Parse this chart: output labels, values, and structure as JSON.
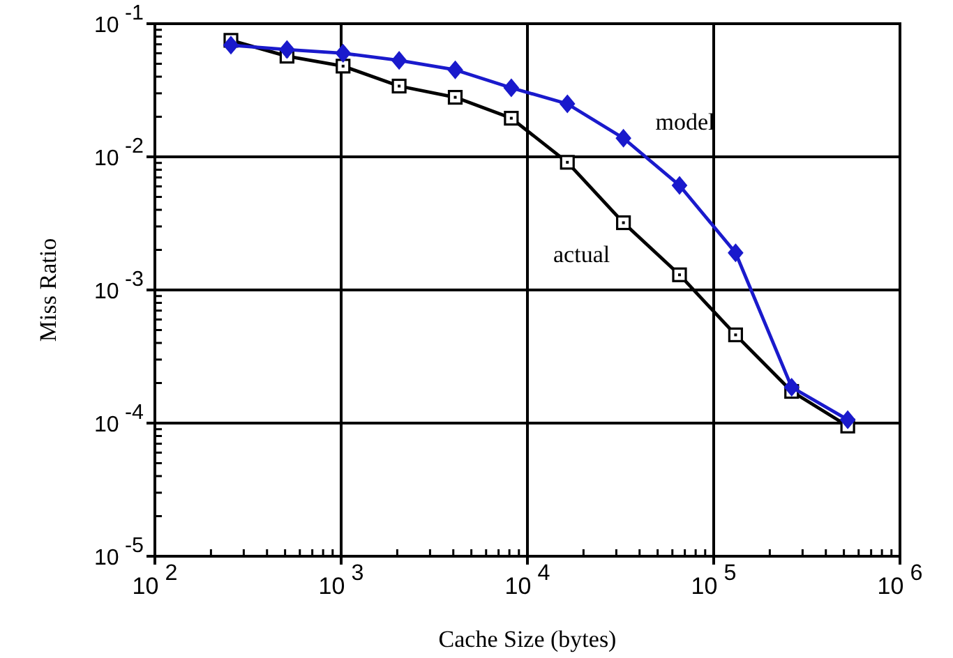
{
  "chart_data": {
    "type": "line",
    "xlabel": "Cache Size (bytes)",
    "ylabel": "Miss Ratio",
    "log": "xy",
    "grid": true,
    "line_style": "solid",
    "x": [
      256,
      512,
      1024,
      2048,
      4096,
      8192,
      16384,
      32768,
      65536,
      131072,
      262144,
      524288
    ],
    "xlim": [
      100,
      1000000
    ],
    "ylim": [
      1e-05,
      0.1
    ],
    "xticks": [
      {
        "value": 100,
        "label": "10$^{2}$"
      },
      {
        "value": 1000,
        "label": "10$^{3}$"
      },
      {
        "value": 10000,
        "label": "10$^{4}$"
      },
      {
        "value": 100000,
        "label": "10$^{5}$"
      },
      {
        "value": 1000000,
        "label": "10$^{6}$"
      }
    ],
    "yticks": [
      {
        "value": 1e-05,
        "label": "10$^{-5}$"
      },
      {
        "value": 0.0001,
        "label": "10$^{-4}$"
      },
      {
        "value": 0.001,
        "label": "10$^{-3}$"
      },
      {
        "value": 0.01,
        "label": "10$^{-2}$"
      },
      {
        "value": 0.1,
        "label": "10$^{-1}$"
      }
    ],
    "series": [
      {
        "name": "model",
        "color": "#1a1acc",
        "marker": "diamond",
        "values": [
          0.069,
          0.064,
          0.06,
          0.053,
          0.045,
          0.033,
          0.025,
          0.0138,
          0.0061,
          0.0019,
          0.000186,
          0.000106
        ]
      },
      {
        "name": "actual",
        "color": "#000000",
        "marker": "square",
        "values": [
          0.075,
          0.057,
          0.048,
          0.034,
          0.028,
          0.0195,
          0.0091,
          0.0032,
          0.0013,
          0.00046,
          0.000173,
          9.5e-05
        ]
      }
    ]
  }
}
